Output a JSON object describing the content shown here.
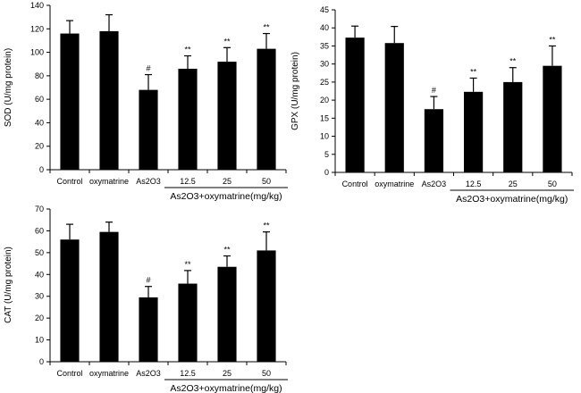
{
  "chart_data": [
    {
      "id": "sod",
      "type": "bar",
      "ylabel": "SOD (U/mg protein)",
      "ylim": [
        0,
        140
      ],
      "yticks": [
        0,
        20,
        40,
        60,
        80,
        100,
        120,
        140
      ],
      "categories": [
        "Control",
        "oxymatrine",
        "As2O3",
        "12.5",
        "25",
        "50"
      ],
      "values": [
        116,
        118,
        68,
        86,
        92,
        103
      ],
      "errors": [
        11,
        14,
        13,
        11,
        12,
        13
      ],
      "annotations": [
        "",
        "",
        "#",
        "**",
        "**",
        "**"
      ],
      "group_label": "As2O3+oxymatrine(mg/kg)",
      "bar_color": "#000000"
    },
    {
      "id": "gpx",
      "type": "bar",
      "ylabel": "GPX (U/mg protein)",
      "ylim": [
        0,
        45
      ],
      "yticks": [
        0,
        5,
        10,
        15,
        20,
        25,
        30,
        35,
        40,
        45
      ],
      "categories": [
        "Control",
        "oxymatrine",
        "As2O3",
        "12.5",
        "25",
        "50"
      ],
      "values": [
        37.3,
        35.8,
        17.5,
        22.3,
        25,
        29.5
      ],
      "errors": [
        3.2,
        4.6,
        3.5,
        3.8,
        4,
        5.5
      ],
      "annotations": [
        "",
        "",
        "#",
        "**",
        "**",
        "**"
      ],
      "group_label": "As2O3+oxymatrine(mg/kg)",
      "bar_color": "#000000"
    },
    {
      "id": "cat",
      "type": "bar",
      "ylabel": "CAT (U/mg protein)",
      "ylim": [
        0,
        70
      ],
      "yticks": [
        0,
        10,
        20,
        30,
        40,
        50,
        60,
        70
      ],
      "categories": [
        "Control",
        "oxymatrine",
        "As2O3",
        "12.5",
        "25",
        "50"
      ],
      "values": [
        56,
        59.5,
        29.5,
        35.8,
        43.5,
        51
      ],
      "errors": [
        7,
        4.5,
        5,
        6,
        5,
        8.5
      ],
      "annotations": [
        "",
        "",
        "#",
        "**",
        "**",
        "**"
      ],
      "group_label": "As2O3+oxymatrine(mg/kg)",
      "bar_color": "#000000"
    }
  ]
}
